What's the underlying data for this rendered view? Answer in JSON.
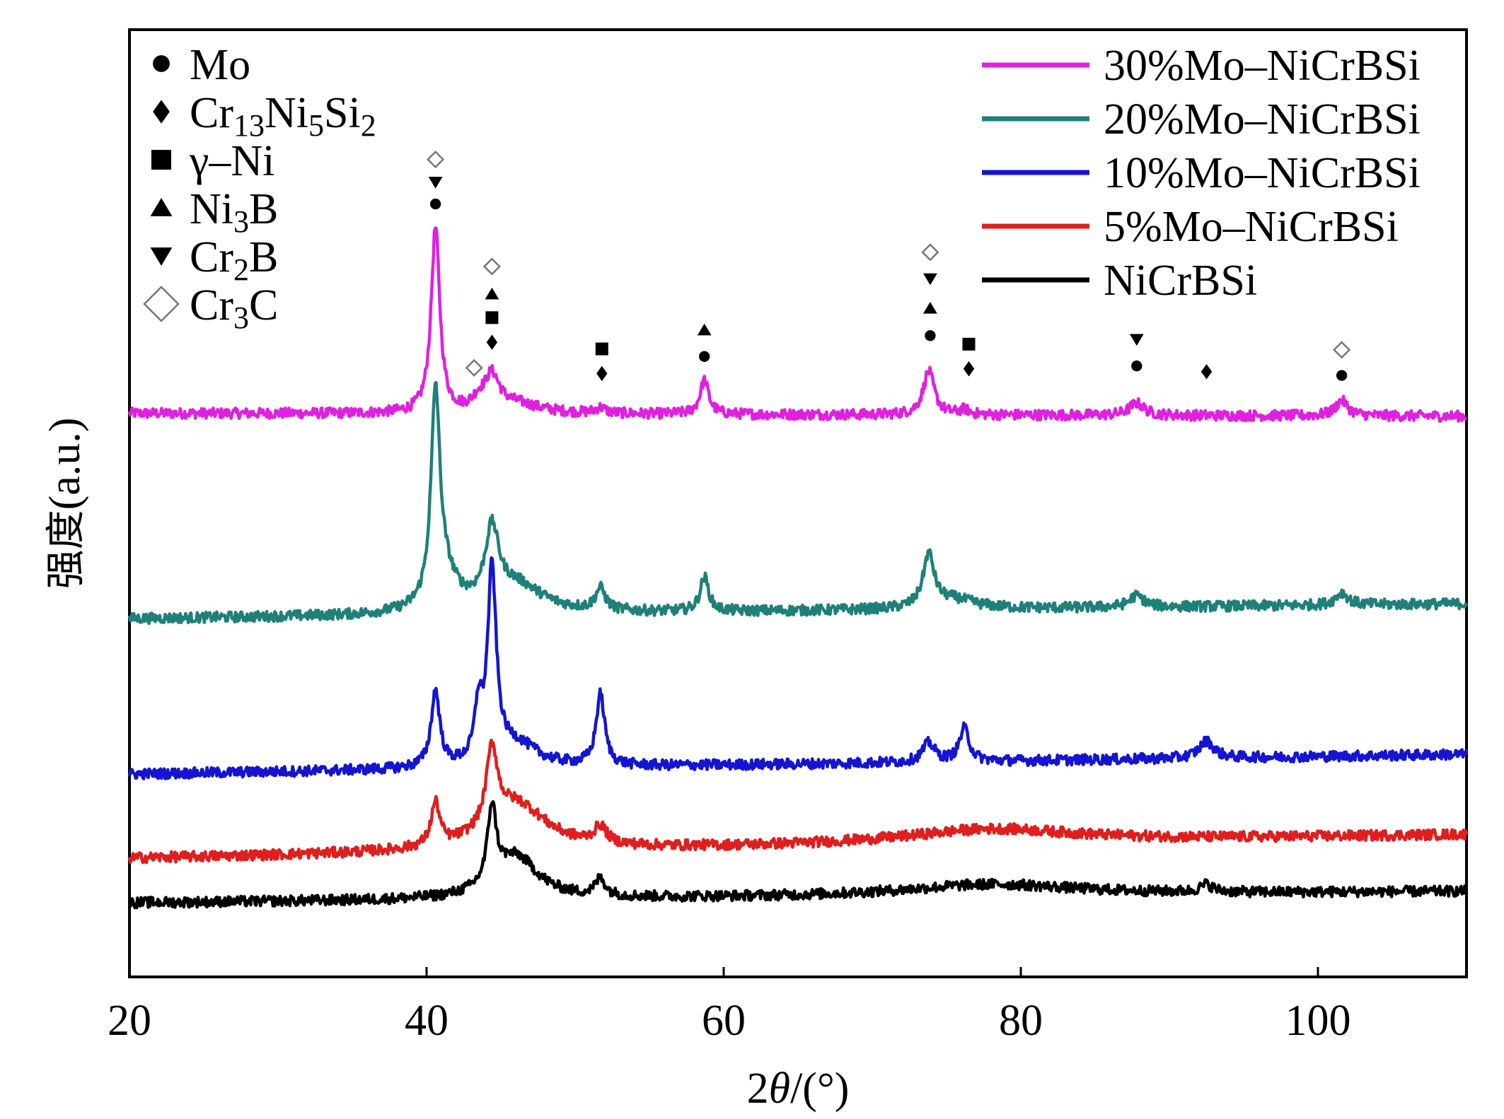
{
  "chart_data": {
    "type": "line",
    "xlabel": {
      "num": "2",
      "sym": "θ",
      "unit": "/(°)"
    },
    "ylabel": {
      "cn": "强度",
      "unit": "(a.u.)"
    },
    "xlim": [
      20,
      110
    ],
    "ylim": [
      0,
      100
    ],
    "xticks": [
      20,
      40,
      60,
      80,
      100
    ],
    "ytick_labels_shown": false,
    "grid": false,
    "legend_position": "top-right",
    "series": [
      {
        "name": "30%Mo–NiCrBSi",
        "color": "#E020E0",
        "baseline_start": 59.5,
        "baseline_end": 59.2,
        "peaks": [
          {
            "x": 40.6,
            "h": 19.5,
            "w": 0.35
          },
          {
            "x": 43.5,
            "h": 1.0,
            "w": 0.5
          },
          {
            "x": 44.4,
            "h": 3.6,
            "w": 0.6
          },
          {
            "x": 46.0,
            "h": 1.0,
            "w": 2.0
          },
          {
            "x": 51.7,
            "h": 0.6,
            "w": 0.4
          },
          {
            "x": 58.7,
            "h": 3.6,
            "w": 0.35
          },
          {
            "x": 73.8,
            "h": 4.6,
            "w": 0.45
          },
          {
            "x": 76.2,
            "h": 0.5,
            "w": 0.4
          },
          {
            "x": 87.8,
            "h": 1.3,
            "w": 0.6
          },
          {
            "x": 101.6,
            "h": 1.6,
            "w": 0.5
          }
        ]
      },
      {
        "name": "20%Mo–NiCrBSi",
        "color": "#1E8079",
        "baseline_start": 37.8,
        "baseline_end": 39.4,
        "peaks": [
          {
            "x": 40.6,
            "h": 21.5,
            "w": 0.35
          },
          {
            "x": 41.2,
            "h": 3.5,
            "w": 1.0
          },
          {
            "x": 44.4,
            "h": 7.5,
            "w": 0.55
          },
          {
            "x": 46.0,
            "h": 3.0,
            "w": 2.2
          },
          {
            "x": 51.7,
            "h": 2.3,
            "w": 0.4
          },
          {
            "x": 58.7,
            "h": 3.6,
            "w": 0.35
          },
          {
            "x": 73.8,
            "h": 5.5,
            "w": 0.45
          },
          {
            "x": 75.5,
            "h": 1.0,
            "w": 1.8
          },
          {
            "x": 87.8,
            "h": 1.2,
            "w": 0.6
          },
          {
            "x": 101.6,
            "h": 1.3,
            "w": 0.5
          }
        ]
      },
      {
        "name": "10%Mo–NiCrBSi",
        "color": "#1414D2",
        "baseline_start": 21.4,
        "baseline_end": 23.5,
        "peaks": [
          {
            "x": 40.6,
            "h": 8.0,
            "w": 0.35
          },
          {
            "x": 43.5,
            "h": 5.5,
            "w": 0.3
          },
          {
            "x": 44.4,
            "h": 20.0,
            "w": 0.35
          },
          {
            "x": 46.0,
            "h": 2.5,
            "w": 1.8
          },
          {
            "x": 51.7,
            "h": 7.5,
            "w": 0.35
          },
          {
            "x": 73.8,
            "h": 2.0,
            "w": 0.5
          },
          {
            "x": 76.2,
            "h": 3.5,
            "w": 0.4
          },
          {
            "x": 92.5,
            "h": 1.8,
            "w": 0.6
          }
        ]
      },
      {
        "name": "5%Mo–NiCrBSi",
        "color": "#E01E1E",
        "baseline_start": 12.5,
        "baseline_end": 15.0,
        "peaks": [
          {
            "x": 40.6,
            "h": 4.5,
            "w": 0.35
          },
          {
            "x": 44.4,
            "h": 8.0,
            "w": 0.45
          },
          {
            "x": 46.0,
            "h": 5.0,
            "w": 2.5
          },
          {
            "x": 51.7,
            "h": 1.8,
            "w": 0.5
          },
          {
            "x": 78.0,
            "h": 1.5,
            "w": 7.0
          }
        ]
      },
      {
        "name": "NiCrBSi",
        "color": "#000000",
        "baseline_start": 7.8,
        "baseline_end": 9.0,
        "peaks": [
          {
            "x": 44.4,
            "h": 8.0,
            "w": 0.35
          },
          {
            "x": 46.0,
            "h": 4.5,
            "w": 1.8
          },
          {
            "x": 51.7,
            "h": 1.8,
            "w": 0.4
          },
          {
            "x": 78.0,
            "h": 1.2,
            "w": 7.0
          },
          {
            "x": 92.5,
            "h": 0.8,
            "w": 0.5
          }
        ]
      }
    ],
    "phase_legend": [
      {
        "symbol": "circle",
        "parts": [
          {
            "t": "Mo"
          }
        ]
      },
      {
        "symbol": "diamond",
        "parts": [
          {
            "t": "Cr"
          },
          {
            "t": "13",
            "sub": true
          },
          {
            "t": "Ni"
          },
          {
            "t": "5",
            "sub": true
          },
          {
            "t": "Si"
          },
          {
            "t": "2",
            "sub": true
          }
        ]
      },
      {
        "symbol": "square",
        "parts": [
          {
            "t": "γ–Ni"
          }
        ]
      },
      {
        "symbol": "triangle-up",
        "parts": [
          {
            "t": "Ni"
          },
          {
            "t": "3",
            "sub": true
          },
          {
            "t": "B"
          }
        ]
      },
      {
        "symbol": "triangle-down",
        "parts": [
          {
            "t": "Cr"
          },
          {
            "t": "2",
            "sub": true
          },
          {
            "t": "B"
          }
        ]
      },
      {
        "symbol": "diamond-open",
        "parts": [
          {
            "t": "Cr"
          },
          {
            "t": "3",
            "sub": true
          },
          {
            "t": "C"
          }
        ]
      }
    ],
    "peak_markers": [
      {
        "x": 40.6,
        "y": 81.6,
        "symbol": "circle"
      },
      {
        "x": 40.6,
        "y": 83.9,
        "symbol": "triangle-down"
      },
      {
        "x": 40.6,
        "y": 86.3,
        "symbol": "diamond-open"
      },
      {
        "x": 43.2,
        "y": 64.3,
        "symbol": "diamond-open"
      },
      {
        "x": 44.4,
        "y": 67.0,
        "symbol": "diamond"
      },
      {
        "x": 44.4,
        "y": 69.6,
        "symbol": "square"
      },
      {
        "x": 44.4,
        "y": 72.1,
        "symbol": "triangle-up"
      },
      {
        "x": 44.4,
        "y": 75.0,
        "symbol": "diamond-open"
      },
      {
        "x": 51.8,
        "y": 63.7,
        "symbol": "diamond"
      },
      {
        "x": 51.8,
        "y": 66.3,
        "symbol": "square"
      },
      {
        "x": 58.7,
        "y": 65.5,
        "symbol": "circle"
      },
      {
        "x": 58.7,
        "y": 68.3,
        "symbol": "triangle-up"
      },
      {
        "x": 73.9,
        "y": 67.7,
        "symbol": "circle"
      },
      {
        "x": 73.9,
        "y": 70.6,
        "symbol": "triangle-up"
      },
      {
        "x": 73.9,
        "y": 73.7,
        "symbol": "triangle-down"
      },
      {
        "x": 73.9,
        "y": 76.5,
        "symbol": "diamond-open"
      },
      {
        "x": 76.5,
        "y": 64.2,
        "symbol": "diamond"
      },
      {
        "x": 76.5,
        "y": 66.8,
        "symbol": "square"
      },
      {
        "x": 87.8,
        "y": 64.5,
        "symbol": "circle"
      },
      {
        "x": 87.8,
        "y": 67.3,
        "symbol": "triangle-down"
      },
      {
        "x": 92.5,
        "y": 63.9,
        "symbol": "diamond"
      },
      {
        "x": 101.6,
        "y": 63.5,
        "symbol": "circle"
      },
      {
        "x": 101.6,
        "y": 66.2,
        "symbol": "diamond-open"
      }
    ]
  }
}
